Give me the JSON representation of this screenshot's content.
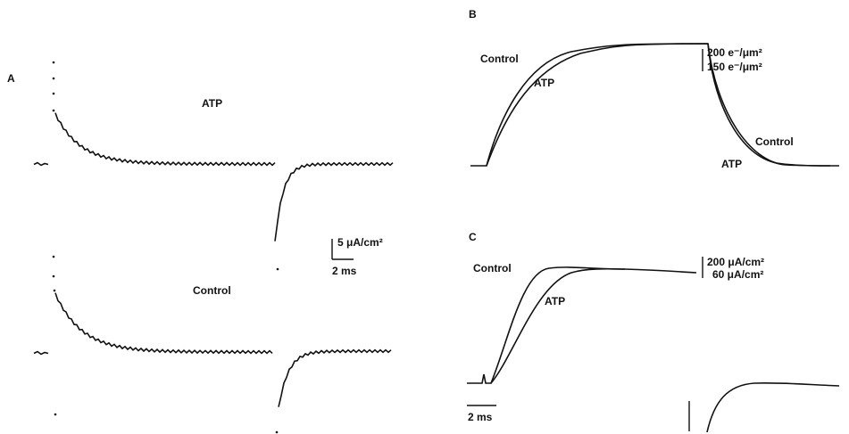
{
  "panels": [
    {
      "label": "A",
      "annotations": [
        "ATP",
        "Control"
      ],
      "scale": [
        "5 μA/cm²",
        "2 ms"
      ]
    },
    {
      "label": "B",
      "annotations": [
        "Control",
        "ATP",
        "Control",
        "ATP"
      ],
      "scale": [
        "200 e⁻/μm²",
        "150 e⁻/μm²"
      ]
    },
    {
      "label": "C",
      "annotations": [
        "Control",
        "ATP"
      ],
      "scale": [
        "200 μA/cm²",
        "60 μA/cm²",
        "2 ms"
      ]
    }
  ]
}
